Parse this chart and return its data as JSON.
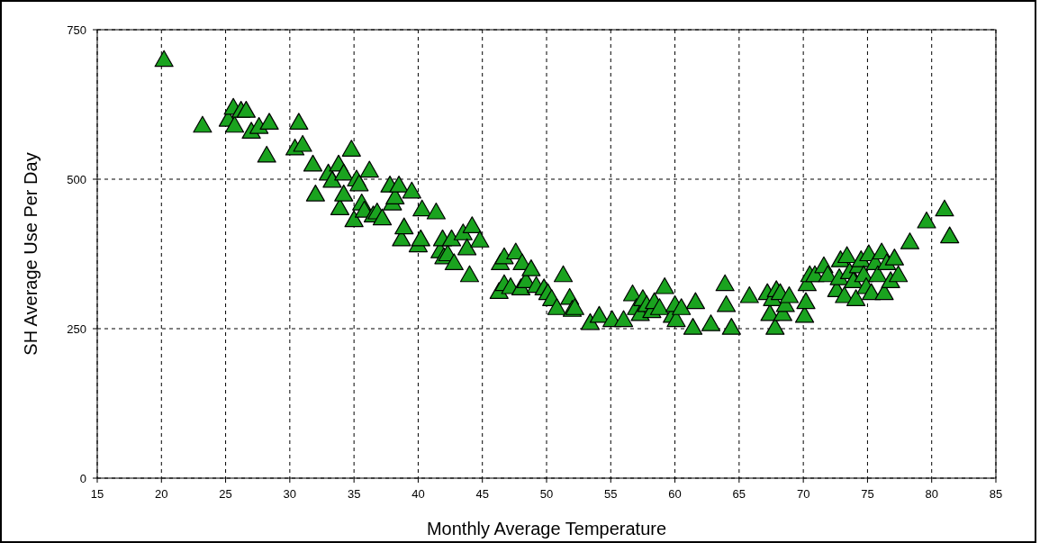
{
  "chart_data": {
    "type": "scatter",
    "xlabel": "Monthly Average Temperature",
    "ylabel": "SH Average Use Per Day",
    "xlim": [
      15,
      85
    ],
    "xticks": [
      15,
      20,
      25,
      30,
      35,
      40,
      45,
      50,
      55,
      60,
      65,
      70,
      75,
      80,
      85
    ],
    "ylim": [
      0,
      750
    ],
    "yticks": [
      0,
      250,
      500,
      750
    ],
    "grid": true,
    "marker": "triangle",
    "series": [
      {
        "color": "#1aa31f",
        "x": [
          20.2,
          23.2,
          25.2,
          25.6,
          25.7,
          26.2,
          26.6,
          27.0,
          27.6,
          28.2,
          28.4,
          30.4,
          30.7,
          31.0,
          31.8,
          32.0,
          33.0,
          33.3,
          33.8,
          33.9,
          34.2,
          34.2,
          34.8,
          35.0,
          35.2,
          35.4,
          35.6,
          35.8,
          36.2,
          36.5,
          36.8,
          37.2,
          37.8,
          38.0,
          38.2,
          38.5,
          38.7,
          38.9,
          39.5,
          40.0,
          40.2,
          40.3,
          41.4,
          41.7,
          41.9,
          42.0,
          42.3,
          42.6,
          42.8,
          43.5,
          43.8,
          44.0,
          44.2,
          44.8,
          46.3,
          46.4,
          46.7,
          46.7,
          47.2,
          47.6,
          48.0,
          48.1,
          48.4,
          48.8,
          49.2,
          49.8,
          50.1,
          50.4,
          50.8,
          51.3,
          51.8,
          52.0,
          52.2,
          53.4,
          54.1,
          55.1,
          56.0,
          56.7,
          57.0,
          57.3,
          57.5,
          57.8,
          58.2,
          58.4,
          58.8,
          59.2,
          59.8,
          60.0,
          60.1,
          60.5,
          61.4,
          61.6,
          62.8,
          63.9,
          64.0,
          64.4,
          65.8,
          67.2,
          67.4,
          67.6,
          67.8,
          67.9,
          68.2,
          68.4,
          68.6,
          68.9,
          70.1,
          70.2,
          70.3,
          70.5,
          70.9,
          71.6,
          71.9,
          72.6,
          72.8,
          72.9,
          73.2,
          73.4,
          73.6,
          73.9,
          74.1,
          74.3,
          74.5,
          74.7,
          74.9,
          75.1,
          75.3,
          75.6,
          75.8,
          76.1,
          76.3,
          76.5,
          76.8,
          77.1,
          77.4,
          78.3,
          79.6,
          81.0,
          81.4
        ],
        "values": [
          700,
          590,
          600,
          620,
          590,
          615,
          615,
          580,
          588,
          540,
          595,
          552,
          595,
          558,
          525,
          475,
          510,
          498,
          525,
          452,
          510,
          475,
          550,
          432,
          500,
          492,
          460,
          448,
          515,
          440,
          445,
          435,
          490,
          460,
          470,
          490,
          400,
          420,
          480,
          390,
          400,
          450,
          445,
          380,
          400,
          370,
          375,
          400,
          360,
          410,
          385,
          340,
          422,
          398,
          312,
          360,
          370,
          325,
          320,
          378,
          318,
          360,
          330,
          350,
          322,
          318,
          310,
          300,
          285,
          340,
          302,
          282,
          285,
          260,
          272,
          265,
          265,
          308,
          285,
          275,
          300,
          290,
          280,
          295,
          285,
          320,
          272,
          290,
          265,
          285,
          252,
          295,
          258,
          325,
          290,
          252,
          305,
          310,
          275,
          300,
          252,
          315,
          310,
          275,
          290,
          305,
          272,
          295,
          325,
          340,
          340,
          355,
          340,
          315,
          335,
          365,
          305,
          372,
          345,
          330,
          300,
          355,
          365,
          340,
          320,
          375,
          310,
          360,
          340,
          378,
          310,
          360,
          330,
          368,
          340,
          395,
          430,
          450,
          405
        ]
      }
    ]
  }
}
